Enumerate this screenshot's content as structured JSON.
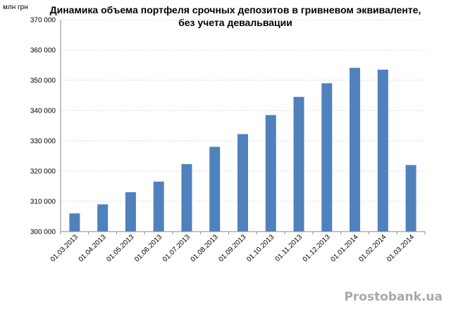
{
  "chart_data": {
    "type": "bar",
    "title_line1": "Динамика объема портфеля  срочных депозитов в гривневом эквиваленте,",
    "title_line2": "без учета девальвации",
    "ylabel": "млн грн",
    "xlabel": "",
    "ylim": [
      300000,
      370000
    ],
    "yticks": [
      "300 000",
      "310 000",
      "320 000",
      "330 000",
      "340 000",
      "350 000",
      "360 000",
      "370 000"
    ],
    "categories": [
      "01.03.2013",
      "01.04.2013",
      "01.05.2013",
      "01.06.2013",
      "01.07.2013",
      "01.08.2013",
      "01.09.2013",
      "01.10.2013",
      "01.11.2013",
      "01.12.2013",
      "01.01.2014",
      "01.02.2014",
      "01.03.2014"
    ],
    "values": [
      306000,
      309000,
      313000,
      316500,
      322300,
      328000,
      332200,
      338500,
      344500,
      349000,
      354100,
      353500,
      322000
    ],
    "bar_color": "#4f81bd",
    "grid": true
  },
  "watermark": "Prostobank.ua"
}
